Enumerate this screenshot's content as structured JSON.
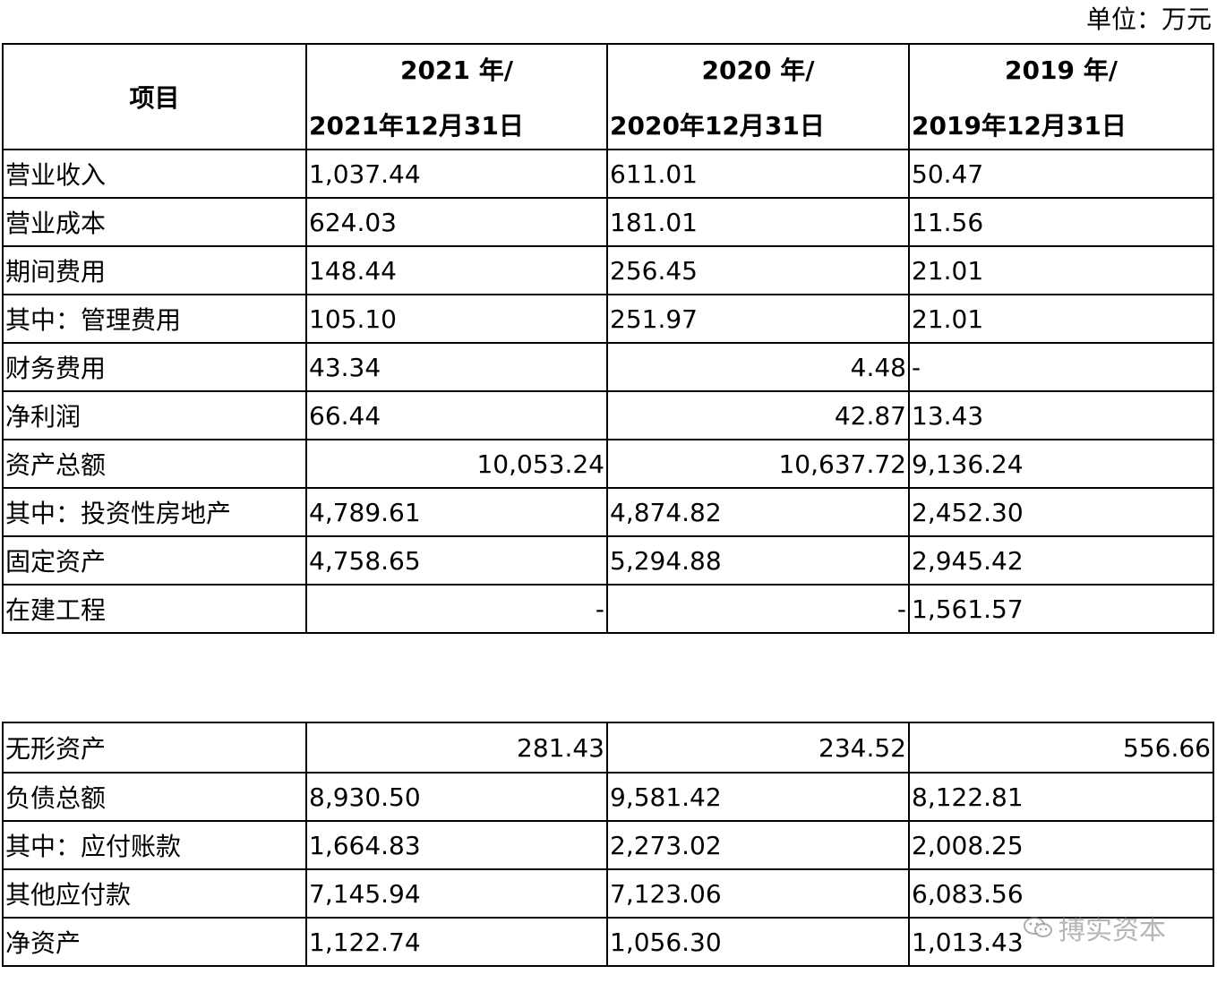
{
  "unit_label": "单位：万元",
  "header": {
    "item_label": "项目",
    "columns": [
      {
        "year": "2021 年/",
        "date": "2021年12月31日"
      },
      {
        "year": "2020 年/",
        "date": "2020年12月31日"
      },
      {
        "year": "2019 年/",
        "date": "2019年12月31日"
      }
    ]
  },
  "table1": {
    "rows": [
      {
        "label": "营业收入",
        "values": [
          "1,037.44",
          "611.01",
          "50.47"
        ]
      },
      {
        "label": "营业成本",
        "values": [
          "624.03",
          "181.01",
          "11.56"
        ]
      },
      {
        "label": "期间费用",
        "values": [
          "148.44",
          "256.45",
          "21.01"
        ]
      },
      {
        "label": "其中：管理费用",
        "values": [
          "105.10",
          "251.97",
          "21.01"
        ]
      },
      {
        "label": "财务费用",
        "values": [
          "43.34",
          "4.48",
          "-"
        ]
      },
      {
        "label": "净利润",
        "values": [
          "66.44",
          "42.87",
          "13.43"
        ]
      },
      {
        "label": "资产总额",
        "values": [
          "10,053.24",
          "10,637.72",
          "9,136.24"
        ]
      },
      {
        "label": "其中：投资性房地产",
        "values": [
          "4,789.61",
          "4,874.82",
          "2,452.30"
        ]
      },
      {
        "label": "固定资产",
        "values": [
          "4,758.65",
          "5,294.88",
          "2,945.42"
        ]
      },
      {
        "label": "在建工程",
        "values": [
          "-",
          "-",
          "1,561.57"
        ]
      }
    ]
  },
  "table2": {
    "rows": [
      {
        "label": "无形资产",
        "values": [
          "281.43",
          "234.52",
          "556.66"
        ]
      },
      {
        "label": "负债总额",
        "values": [
          "8,930.50",
          "9,581.42",
          "8,122.81"
        ]
      },
      {
        "label": "其中：应付账款",
        "values": [
          "1,664.83",
          "2,273.02",
          "2,008.25"
        ]
      },
      {
        "label": "其他应付款",
        "values": [
          "7,145.94",
          "7,123.06",
          "6,083.56"
        ]
      },
      {
        "label": "净资产",
        "values": [
          "1,122.74",
          "1,056.30",
          "1,013.43"
        ]
      }
    ]
  },
  "watermark": {
    "text": "搏实资本",
    "icon": "wechat-icon"
  }
}
